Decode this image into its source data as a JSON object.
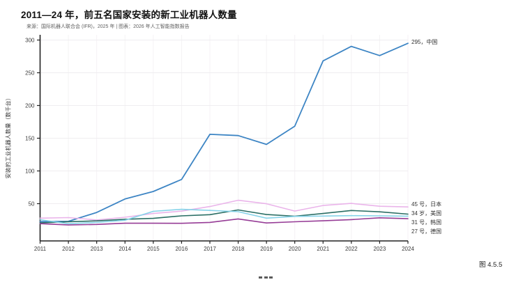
{
  "title": "2011—24 年，前五名国家安装的新工业机器人数量",
  "subtitle": "来源：国际机器人联合会 (IFR)，2025 年 | 图表：2026 年人工智能指数报告",
  "figure_caption": "图 4.5.5",
  "chart_data": {
    "type": "line",
    "title": "2011—24 年，前五名国家安装的新工业机器人数量",
    "xlabel": "",
    "ylabel": "安装的工业机器人数量（数千台）",
    "x": [
      2011,
      2012,
      2013,
      2014,
      2015,
      2016,
      2017,
      2018,
      2019,
      2020,
      2021,
      2022,
      2023,
      2024
    ],
    "ylim": [
      0,
      300
    ],
    "yticks": [
      50,
      100,
      150,
      200,
      250,
      300
    ],
    "grid": true,
    "legend_position": "right-end-labels",
    "series": [
      {
        "name": "中国",
        "end_label": "295，中国",
        "color": "#3d85c4",
        "values": [
          22.6,
          23,
          36.6,
          57.1,
          68.6,
          87,
          156,
          154,
          140.5,
          168.4,
          268.2,
          290.3,
          276.3,
          295
        ]
      },
      {
        "name": "日本",
        "end_label": "45 号，日本",
        "color": "#eab4ea",
        "values": [
          27.9,
          28.7,
          25.1,
          29.3,
          35,
          38.6,
          45.6,
          55.2,
          49.9,
          38.7,
          47.2,
          50.4,
          46.1,
          45
        ]
      },
      {
        "name": "美国",
        "end_label": "34 岁，美国",
        "color": "#2a6e64",
        "values": [
          20.6,
          22.4,
          23.7,
          26.2,
          27.5,
          31.4,
          33.2,
          40.4,
          33.4,
          30.8,
          35,
          39.6,
          37.6,
          34
        ]
      },
      {
        "name": "韩国",
        "end_label": "31 号，韩国",
        "color": "#86d3e9",
        "values": [
          25.5,
          19.4,
          21.3,
          24.7,
          38.3,
          41.4,
          39.7,
          37.8,
          27.9,
          30.5,
          31.1,
          31.7,
          31.4,
          31
        ]
      },
      {
        "name": "德国",
        "end_label": "27 号，德国",
        "color": "#963c96",
        "values": [
          19.5,
          17.5,
          18.3,
          20.1,
          20.1,
          20,
          21.4,
          26.7,
          20.5,
          22.3,
          23.8,
          25.6,
          28.4,
          27
        ]
      }
    ]
  }
}
